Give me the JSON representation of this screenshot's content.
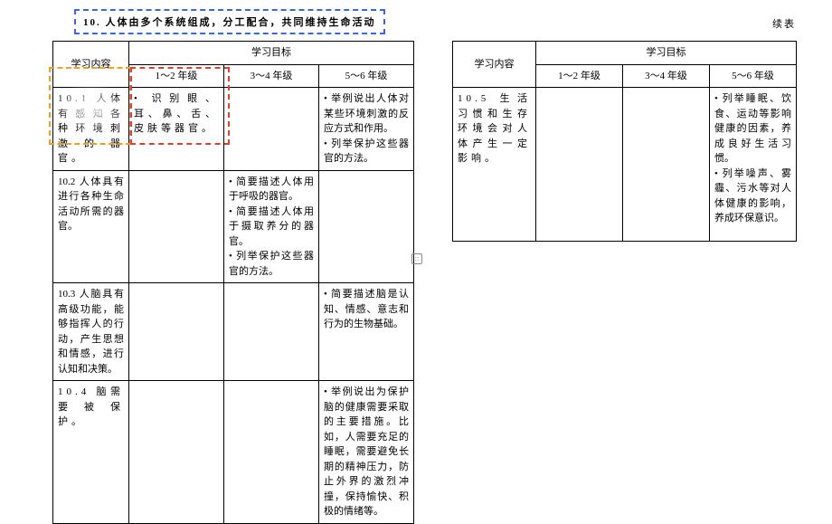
{
  "title": "10. 人体由多个系统组成，分工配合，共同维持生命活动",
  "cont_label": "续表",
  "headers": {
    "content": "学习内容",
    "objectives": "学习目标",
    "g12": "1～2 年级",
    "g34": "3～4 年级",
    "g56": "5～6 年级"
  },
  "left_rows": [
    {
      "content": "10.1 人体有感知各种环境刺激的器官。",
      "g12": "• 识别眼、耳、鼻、舌、皮肤等器官。",
      "g34": "",
      "g56": "• 举例说出人体对某些环境刺激的反应方式和作用。\n• 列举保护这些器官的方法。"
    },
    {
      "content": "10.2 人体具有进行各种生命活动所需的器官。",
      "g12": "",
      "g34": "• 简要描述人体用于呼吸的器官。\n• 简要描述人体用于摄取养分的器官。\n• 列举保护这些器官的方法。",
      "g56": ""
    },
    {
      "content": "10.3 人脑具有高级功能，能够指挥人的行动，产生思想和情感，进行认知和决策。",
      "g12": "",
      "g34": "",
      "g56": "• 简要描述脑是认知、情感、意志和行为的生物基础。"
    },
    {
      "content": "10.4 脑需要被保护。",
      "g12": "",
      "g34": "",
      "g56": "• 举例说出为保护脑的健康需要采取的主要措施。比如，人需要充足的睡眠，需要避免长期的精神压力，防止外界的激烈冲撞，保持愉快、积极的情绪等。"
    }
  ],
  "right_rows": [
    {
      "content": "10.5 生活习惯和生存环境会对人体产生一定影响。",
      "g12": "",
      "g34": "",
      "g56": "• 列举睡眠、饮食、运动等影响健康的因素，养成良好生活习惯。\n• 列举噪声、雾霾、污水等对人体健康的影响，养成环保意识。"
    }
  ]
}
